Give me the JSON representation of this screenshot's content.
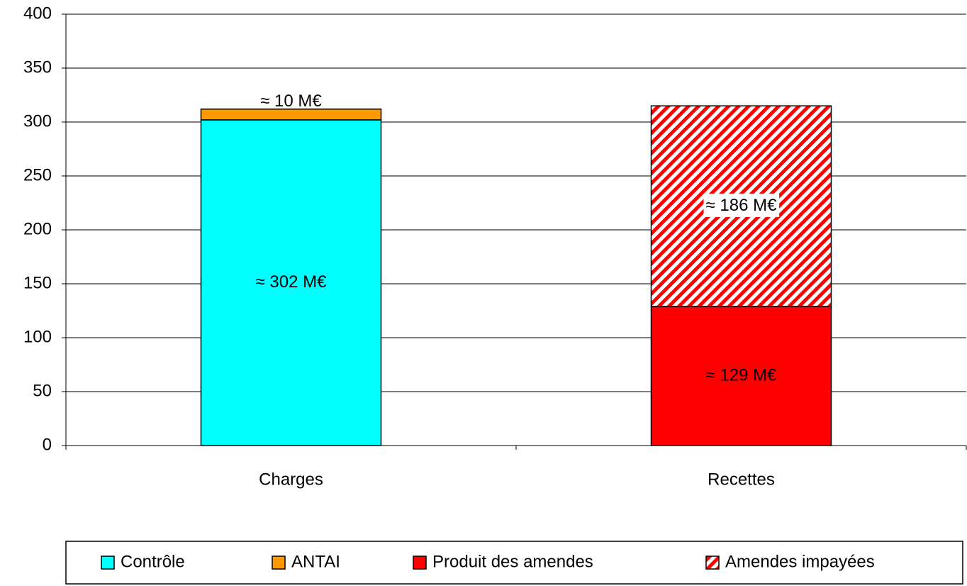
{
  "chart_data": {
    "type": "stacked-bar",
    "categories": [
      "Charges",
      "Recettes"
    ],
    "series": [
      {
        "name": "Contrôle",
        "color": "#00ffff",
        "label_color": "#000000",
        "values": [
          302,
          null
        ],
        "value_labels": [
          "≈ 302 M€",
          null
        ]
      },
      {
        "name": "ANTAI",
        "color": "#ff9900",
        "label_color": "#000000",
        "values": [
          10,
          null
        ],
        "value_labels": [
          "≈ 10 M€",
          null
        ]
      },
      {
        "name": "Produit des amendes",
        "color": "#ff0000",
        "label_color": "#ffffff",
        "values": [
          null,
          129
        ],
        "value_labels": [
          null,
          "≈ 129 M€"
        ]
      },
      {
        "name": "Amendes impayées",
        "color": "#ff0000",
        "pattern": "hatch",
        "label_color": "#000000",
        "values": [
          null,
          186
        ],
        "value_labels": [
          null,
          "≈ 186 M€"
        ]
      }
    ],
    "ylim": [
      0,
      400
    ],
    "yticks": [
      0,
      50,
      100,
      150,
      200,
      250,
      300,
      350,
      400
    ],
    "grid": true,
    "legend": "bottom"
  }
}
